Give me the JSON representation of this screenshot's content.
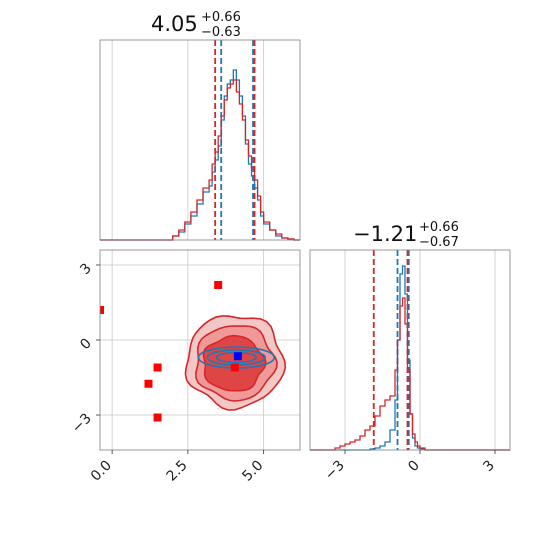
{
  "chart_data": [
    {
      "type": "histogram",
      "panel": "top-left",
      "title": {
        "value": "4.05",
        "plus": "+0.66",
        "minus": "−0.63"
      },
      "xlim": [
        -0.4,
        6.2
      ],
      "ylim": [
        0,
        1.0
      ],
      "grid": true,
      "colors": {
        "blue": "#1f77b4",
        "red": "#d62728"
      },
      "quantile_lines": {
        "blue": [
          3.6,
          4.65
        ],
        "red": [
          3.4,
          4.7
        ]
      },
      "bins": [
        2.0,
        2.2,
        2.4,
        2.6,
        2.8,
        3.0,
        3.2,
        3.3,
        3.4,
        3.5,
        3.6,
        3.7,
        3.8,
        3.9,
        4.0,
        4.1,
        4.2,
        4.3,
        4.4,
        4.5,
        4.6,
        4.7,
        4.8,
        4.9,
        5.0,
        5.2,
        5.4,
        5.6,
        5.8,
        6.0
      ],
      "series": [
        {
          "values": [
            0.02,
            0.04,
            0.08,
            0.12,
            0.18,
            0.24,
            0.27,
            0.34,
            0.4,
            0.47,
            0.6,
            0.72,
            0.78,
            0.8,
            0.85,
            0.8,
            0.72,
            0.62,
            0.48,
            0.38,
            0.32,
            0.26,
            0.2,
            0.12,
            0.08,
            0.05,
            0.02,
            0.01,
            0.005
          ]
        },
        {
          "values": [
            0.02,
            0.05,
            0.09,
            0.14,
            0.2,
            0.26,
            0.3,
            0.38,
            0.44,
            0.52,
            0.62,
            0.7,
            0.76,
            0.78,
            0.8,
            0.74,
            0.68,
            0.6,
            0.5,
            0.42,
            0.36,
            0.3,
            0.22,
            0.14,
            0.09,
            0.05,
            0.03,
            0.01,
            0.005
          ]
        }
      ]
    },
    {
      "type": "scatter",
      "panel": "bottom-left",
      "xlim": [
        -0.4,
        6.2
      ],
      "ylim": [
        -4.4,
        3.6
      ],
      "xticks": [
        0.0,
        2.5,
        5.0
      ],
      "xtick_labels": [
        "0.0",
        "2.5",
        "5.0"
      ],
      "yticks": [
        -3,
        0,
        3
      ],
      "ytick_labels": [
        "−3",
        "0",
        "3"
      ],
      "grid": true,
      "red_markers": [
        [
          3.5,
          2.2
        ],
        [
          1.5,
          -1.1
        ],
        [
          1.2,
          -1.75
        ],
        [
          1.5,
          -3.1
        ],
        [
          4.05,
          -1.1
        ],
        [
          -0.4,
          1.2
        ]
      ],
      "blue_markers": [
        [
          4.15,
          -0.65
        ]
      ],
      "red_contours": [
        {
          "cx": 4.05,
          "cy": -0.85,
          "rx": 1.6,
          "ry": 1.85,
          "fill": "#f4c7c7"
        },
        {
          "cx": 4.05,
          "cy": -0.9,
          "rx": 1.3,
          "ry": 1.5,
          "fill": "#ef9999"
        },
        {
          "cx": 4.0,
          "cy": -0.95,
          "rx": 1.0,
          "ry": 1.1,
          "fill": "#e04545"
        }
      ],
      "blue_contours": [
        {
          "cx": 4.1,
          "cy": -0.7,
          "rx": 1.25,
          "ry": 0.42
        },
        {
          "cx": 4.1,
          "cy": -0.7,
          "rx": 0.95,
          "ry": 0.3
        },
        {
          "cx": 4.1,
          "cy": -0.7,
          "rx": 0.65,
          "ry": 0.2
        }
      ]
    },
    {
      "type": "histogram",
      "panel": "bottom-right",
      "title": {
        "value": "−1.21",
        "plus": "+0.66",
        "minus": "−0.67"
      },
      "xlim": [
        -4.4,
        3.6
      ],
      "ylim": [
        0,
        1.0
      ],
      "xticks": [
        -3,
        0,
        3
      ],
      "xtick_labels": [
        "−3",
        "0",
        "3"
      ],
      "grid": true,
      "quantile_lines": {
        "blue": [
          -0.9,
          -0.45
        ],
        "red": [
          -1.85,
          -0.5
        ]
      },
      "bins": [
        -3.4,
        -3.2,
        -3.0,
        -2.8,
        -2.6,
        -2.4,
        -2.2,
        -2.0,
        -1.8,
        -1.6,
        -1.4,
        -1.2,
        -1.0,
        -0.9,
        -0.8,
        -0.7,
        -0.6,
        -0.5,
        -0.4,
        -0.3,
        -0.2,
        -0.1,
        0.0,
        0.2
      ],
      "series": [
        {
          "values": [
            0.0,
            0.0,
            0.0,
            0.0,
            0.0,
            0.0,
            0.0,
            0.005,
            0.01,
            0.02,
            0.04,
            0.1,
            0.25,
            0.55,
            0.88,
            0.92,
            0.78,
            0.45,
            0.18,
            0.06,
            0.02,
            0.01,
            0.005
          ]
        },
        {
          "values": [
            0.01,
            0.02,
            0.03,
            0.04,
            0.05,
            0.07,
            0.1,
            0.12,
            0.17,
            0.22,
            0.25,
            0.27,
            0.4,
            0.55,
            0.72,
            0.76,
            0.63,
            0.4,
            0.18,
            0.08,
            0.04,
            0.02,
            0.01
          ]
        }
      ]
    }
  ]
}
